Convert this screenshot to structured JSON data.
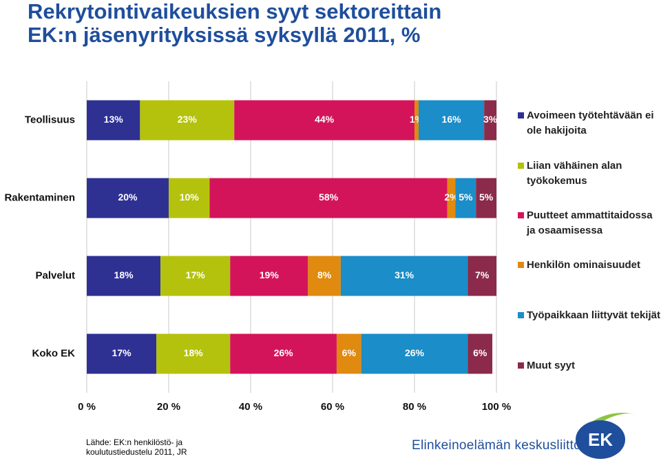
{
  "chart_data": {
    "type": "bar",
    "orientation": "horizontal",
    "stacked": true,
    "title": [
      "Rekrytointivaikeuksien syyt sektoreittain",
      "EK:n jäsenyrityksissä syksyllä 2011, %"
    ],
    "categories": [
      "Teollisuus",
      "Rakentaminen",
      "Palvelut",
      "Koko EK"
    ],
    "series": [
      {
        "name": "Avoimeen työtehtävään ei ole hakijoita",
        "color": "#2e3192",
        "values": [
          13,
          20,
          18,
          17
        ],
        "value_labels": [
          "13%",
          "20%",
          "18%",
          "17%"
        ]
      },
      {
        "name": "Liian vähäinen alan työkokemus",
        "color": "#b5c20d",
        "values": [
          23,
          10,
          17,
          18
        ],
        "value_labels": [
          "23%",
          "10%",
          "17%",
          "18%"
        ]
      },
      {
        "name": "Puutteet ammattitaidossa ja osaamisessa",
        "color": "#d4145a",
        "values": [
          44,
          58,
          19,
          26
        ],
        "value_labels": [
          "44%",
          "58%",
          "19%",
          "26%"
        ]
      },
      {
        "name": "Henkilön ominaisuudet",
        "color": "#e08a0f",
        "values": [
          1,
          2,
          8,
          6
        ],
        "value_labels": [
          "1%",
          "2%",
          "8%",
          "6%"
        ]
      },
      {
        "name": "Työpaikkaan liittyvät tekijät",
        "color": "#1b8dc8",
        "values": [
          16,
          5,
          31,
          26
        ],
        "value_labels": [
          "16%",
          "5%",
          "31%",
          "26%"
        ]
      },
      {
        "name": "Muut syyt",
        "color": "#8b2a4a",
        "values": [
          3,
          5,
          7,
          6
        ],
        "value_labels": [
          "3%",
          "5%",
          "7%",
          "6%"
        ]
      }
    ],
    "xlim": [
      0,
      100
    ],
    "xticks": [
      {
        "value": 0,
        "label": "0 %"
      },
      {
        "value": 20,
        "label": "20 %"
      },
      {
        "value": 40,
        "label": "40 %"
      },
      {
        "value": 60,
        "label": "60 %"
      },
      {
        "value": 80,
        "label": "80 %"
      },
      {
        "value": 100,
        "label": "100 %"
      }
    ],
    "grid": true,
    "source": "Lähde: EK:n henkilöstö- ja koulutustiedustelu 2011, JR",
    "footer": {
      "organization": "Elinkeinoelämän keskusliitto",
      "logo": "EK"
    }
  }
}
